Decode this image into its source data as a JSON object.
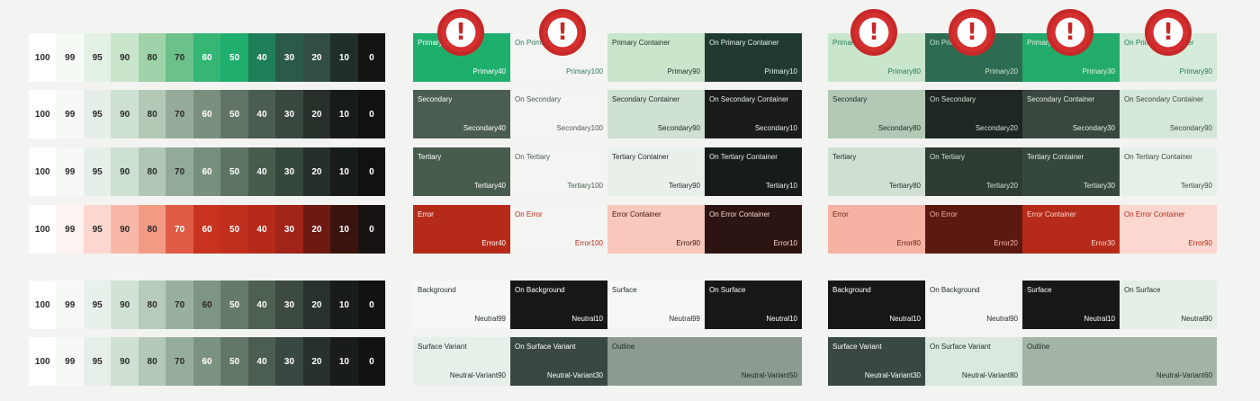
{
  "tone_rows": [
    {
      "name": "primary",
      "values": [
        "100",
        "99",
        "95",
        "90",
        "80",
        "70",
        "60",
        "50",
        "40",
        "30",
        "20",
        "10",
        "0"
      ],
      "colors": [
        "#ffffff",
        "#f6faf5",
        "#e4f2e6",
        "#c9e6cd",
        "#9fd2a8",
        "#6cc089",
        "#35b675",
        "#1fae6d",
        "#1f7f59",
        "#2c5a4a",
        "#314d44",
        "#1f2e29",
        "#141413"
      ]
    },
    {
      "name": "secondary",
      "values": [
        "100",
        "99",
        "95",
        "90",
        "80",
        "70",
        "60",
        "50",
        "40",
        "30",
        "20",
        "10",
        "0"
      ],
      "colors": [
        "#ffffff",
        "#f7f9f7",
        "#e6efe7",
        "#cfe1d2",
        "#b3c9b6",
        "#96ab9a",
        "#7b8f7f",
        "#617466",
        "#4b5c50",
        "#39473e",
        "#273029",
        "#171c18",
        "#111110"
      ]
    },
    {
      "name": "tertiary",
      "values": [
        "100",
        "99",
        "95",
        "90",
        "80",
        "70",
        "60",
        "50",
        "40",
        "30",
        "20",
        "10",
        "0"
      ],
      "colors": [
        "#ffffff",
        "#f6f9f6",
        "#e5efe7",
        "#cde0d1",
        "#b0c7b5",
        "#92ab98",
        "#778f7d",
        "#5d7463",
        "#485c4e",
        "#36473c",
        "#26302a",
        "#171c19",
        "#111110"
      ]
    },
    {
      "name": "error",
      "values": [
        "100",
        "99",
        "95",
        "90",
        "80",
        "70",
        "60",
        "50",
        "40",
        "30",
        "20",
        "10",
        "0"
      ],
      "colors": [
        "#ffffff",
        "#fdf3f1",
        "#fbd7cf",
        "#f8b8a8",
        "#f39a84",
        "#df5b45",
        "#c8331f",
        "#c02f1d",
        "#b62a1a",
        "#a02417",
        "#6e1a12",
        "#3a130d",
        "#181312"
      ]
    },
    {
      "name": "neutral",
      "values": [
        "100",
        "99",
        "95",
        "90",
        "80",
        "70",
        "60",
        "50",
        "40",
        "30",
        "20",
        "10",
        "0"
      ],
      "colors": [
        "#ffffff",
        "#f7f9f7",
        "#e8f0ea",
        "#d2e3d6",
        "#b7cbbb",
        "#9ab09f",
        "#7f9584",
        "#657a6a",
        "#4e6052",
        "#3b493f",
        "#29322c",
        "#181d1a",
        "#121211"
      ]
    },
    {
      "name": "neutral-variant",
      "values": [
        "100",
        "99",
        "95",
        "90",
        "80",
        "70",
        "60",
        "50",
        "40",
        "30",
        "20",
        "10",
        "0"
      ],
      "colors": [
        "#ffffff",
        "#f6f9f6",
        "#e6efe8",
        "#cfe0d3",
        "#b3c8b7",
        "#97ad9c",
        "#7c9281",
        "#627767",
        "#4c5e51",
        "#394840",
        "#28312b",
        "#181d1a",
        "#121211"
      ]
    }
  ],
  "light_tiles": [
    [
      {
        "label": "Primary",
        "token": "Primary40",
        "bg": "#1faf6d",
        "fg": "#ffffff"
      },
      {
        "label": "On Primary",
        "token": "Primary100",
        "bg": "#f4f5f2",
        "fg": "#2f7a5a"
      },
      {
        "label": "Primary Container",
        "token": "Primary90",
        "bg": "#c9e6cd",
        "fg": "#1f2e29"
      },
      {
        "label": "On Primary Container",
        "token": "Primary10",
        "bg": "#203a31",
        "fg": "#e6f2e8"
      }
    ],
    [
      {
        "label": "Secondary",
        "token": "Secondary40",
        "bg": "#4b5c50",
        "fg": "#ffffff"
      },
      {
        "label": "On Secondary",
        "token": "Secondary100",
        "bg": "#f4f5f2",
        "fg": "#4b5c50"
      },
      {
        "label": "Secondary Container",
        "token": "Secondary90",
        "bg": "#cfe1d2",
        "fg": "#1f2925"
      },
      {
        "label": "On Secondary Container",
        "token": "Secondary10",
        "bg": "#1a1c1a",
        "fg": "#e6efe7"
      }
    ],
    [
      {
        "label": "Tertiary",
        "token": "Tertiary40",
        "bg": "#485c4e",
        "fg": "#ffffff"
      },
      {
        "label": "On Tertiary",
        "token": "Tertiary100",
        "bg": "#f4f5f2",
        "fg": "#485c4e"
      },
      {
        "label": "Tertiary Container",
        "token": "Tertiary90",
        "bg": "#e9efe9",
        "fg": "#1f2925"
      },
      {
        "label": "On Tertiary Container",
        "token": "Tertiary10",
        "bg": "#171c19",
        "fg": "#e6efe7"
      }
    ],
    [
      {
        "label": "Error",
        "token": "Error40",
        "bg": "#b62a1a",
        "fg": "#ffffff"
      },
      {
        "label": "On Error",
        "token": "Error100",
        "bg": "#f4f5f2",
        "fg": "#b62a1a"
      },
      {
        "label": "Error Container",
        "token": "Error90",
        "bg": "#f7c8bb",
        "fg": "#3a130d"
      },
      {
        "label": "On Error Container",
        "token": "Error10",
        "bg": "#2b1411",
        "fg": "#f8d5cc"
      }
    ],
    [
      {
        "label": "Background",
        "token": "Neutral99",
        "bg": "#f6f8f6",
        "fg": "#1f2925"
      },
      {
        "label": "On Background",
        "token": "Neutral10",
        "bg": "#171816",
        "fg": "#ffffff"
      },
      {
        "label": "Surface",
        "token": "Neutral99",
        "bg": "#f6f8f6",
        "fg": "#1f2925"
      },
      {
        "label": "On Surface",
        "token": "Neutral10",
        "bg": "#171816",
        "fg": "#ffffff"
      }
    ]
  ],
  "light_last": [
    {
      "label": "Surface Variant",
      "token": "Neutral-Variant90",
      "bg": "#e6efe8",
      "fg": "#1f2925",
      "w": 1
    },
    {
      "label": "On Surface Variant",
      "token": "Neutral-Variant30",
      "bg": "#394840",
      "fg": "#ffffff",
      "w": 1
    },
    {
      "label": "Outline",
      "token": "Neutral-Variant50",
      "bg": "#8c9a8f",
      "fg": "#1f2925",
      "w": 2
    }
  ],
  "dark_tiles": [
    [
      {
        "label": "Primary",
        "token": "Primary80",
        "bg": "#c9e6cd",
        "fg": "#1f7f59"
      },
      {
        "label": "On Primary",
        "token": "Primary20",
        "bg": "#2d6c52",
        "fg": "#c9e6cd"
      },
      {
        "label": "Primary Container",
        "token": "Primary30",
        "bg": "#22ab6a",
        "fg": "#e6f2e8"
      },
      {
        "label": "On Primary Container",
        "token": "Primary90",
        "bg": "#d5ead8",
        "fg": "#1f7f59"
      }
    ],
    [
      {
        "label": "Secondary",
        "token": "Secondary80",
        "bg": "#b3c9b6",
        "fg": "#1f2925"
      },
      {
        "label": "On Secondary",
        "token": "Secondary20",
        "bg": "#1f2723",
        "fg": "#cfe1d2"
      },
      {
        "label": "Secondary Container",
        "token": "Secondary30",
        "bg": "#39473e",
        "fg": "#e6efe7"
      },
      {
        "label": "On Secondary Container",
        "token": "Secondary90",
        "bg": "#d5e7d8",
        "fg": "#39473e"
      }
    ],
    [
      {
        "label": "Tertiary",
        "token": "Tertiary80",
        "bg": "#cfe0d3",
        "fg": "#1f2925"
      },
      {
        "label": "On Tertiary",
        "token": "Tertiary20",
        "bg": "#2e3b33",
        "fg": "#cde0d1"
      },
      {
        "label": "Tertiary Container",
        "token": "Tertiary30",
        "bg": "#36473c",
        "fg": "#e6efe7"
      },
      {
        "label": "On Tertiary Container",
        "token": "Tertiary90",
        "bg": "#e7f0e8",
        "fg": "#36473c"
      }
    ],
    [
      {
        "label": "Error",
        "token": "Error80",
        "bg": "#f6b3a3",
        "fg": "#6e1a12"
      },
      {
        "label": "On Error",
        "token": "Error20",
        "bg": "#5c1912",
        "fg": "#f8b8a8"
      },
      {
        "label": "Error Container",
        "token": "Error30",
        "bg": "#b62a1a",
        "fg": "#fbd7cf"
      },
      {
        "label": "On Error Container",
        "token": "Error90",
        "bg": "#fbd7cf",
        "fg": "#b62a1a"
      }
    ],
    [
      {
        "label": "Background",
        "token": "Neutral10",
        "bg": "#171816",
        "fg": "#ffffff"
      },
      {
        "label": "On Background",
        "token": "Neutral90",
        "bg": "#f4f5f2",
        "fg": "#1f2925"
      },
      {
        "label": "Surface",
        "token": "Neutral10",
        "bg": "#171816",
        "fg": "#ffffff"
      },
      {
        "label": "On Surface",
        "token": "Neutral90",
        "bg": "#e4efe6",
        "fg": "#1f2925"
      }
    ]
  ],
  "dark_last": [
    {
      "label": "Surface Variant",
      "token": "Neutral-Variant30",
      "bg": "#394840",
      "fg": "#ffffff",
      "w": 1
    },
    {
      "label": "On Surface Variant",
      "token": "Neutral-Variant80",
      "bg": "#dbe8dd",
      "fg": "#1f2925",
      "w": 1
    },
    {
      "label": "Outline",
      "token": "Neutral-Variant60",
      "bg": "#a3b3a6",
      "fg": "#1f2925",
      "w": 2
    }
  ],
  "warning_mark": "!"
}
